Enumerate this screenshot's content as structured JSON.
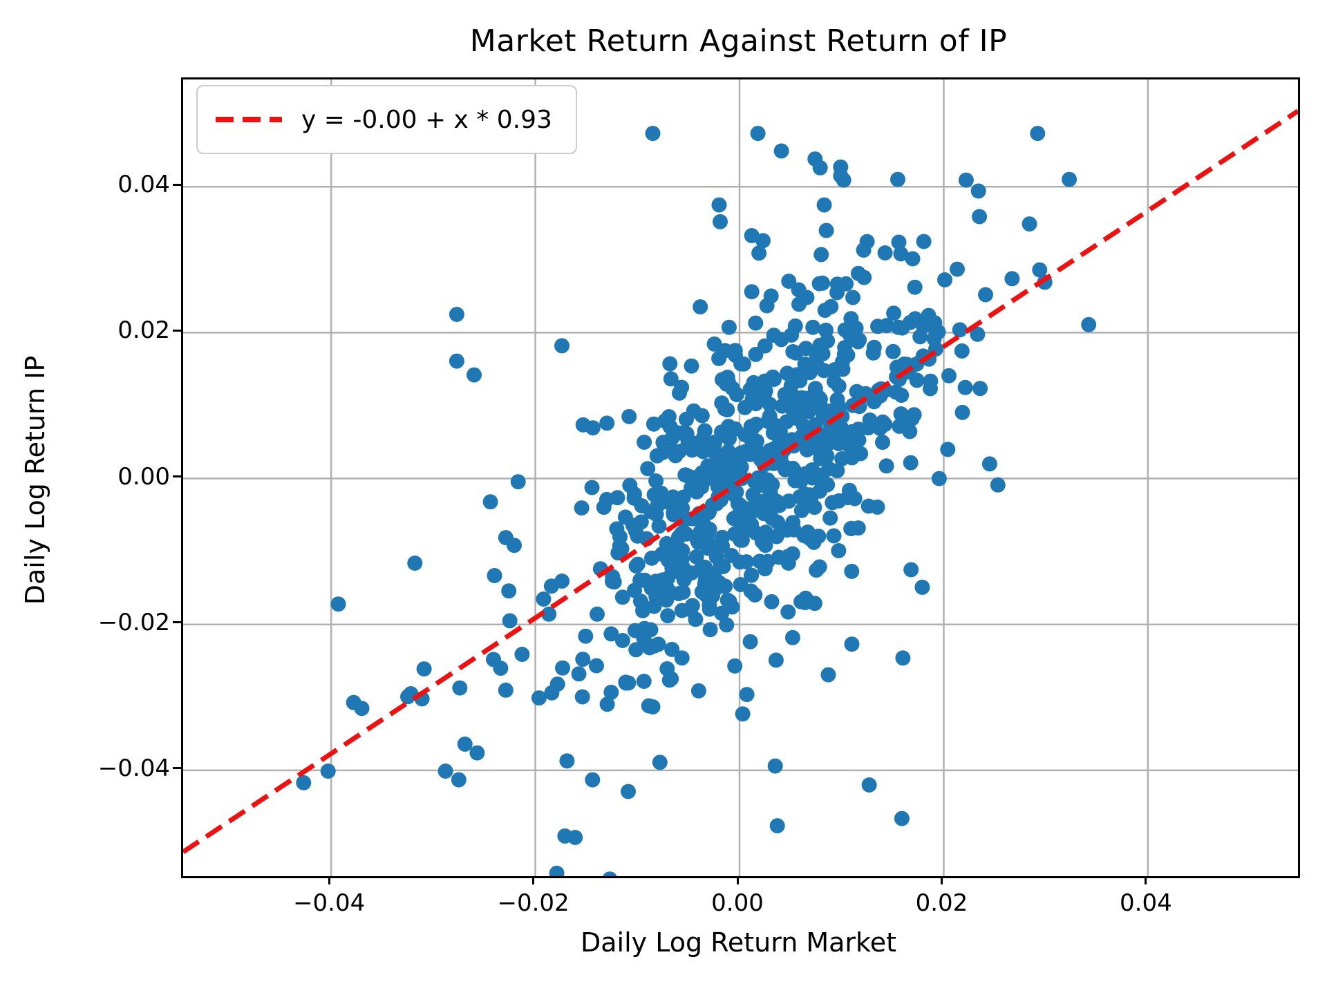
{
  "title": "Market Return Against Return of IP",
  "legend": {
    "label": "y = -0.00 + x * 0.93"
  },
  "axes": {
    "xlabel": "Daily Log Return Market",
    "ylabel": "Daily Log Return IP"
  },
  "colors": {
    "scatter": "#1f77b4",
    "regression_line": "#ec1212",
    "grid": "#b0b0b0",
    "spine": "#000000",
    "background": "#ffffff"
  },
  "chart_data": {
    "type": "scatter",
    "title": "Market Return Against Return of IP",
    "xlabel": "Daily Log Return Market",
    "ylabel": "Daily Log Return IP",
    "grid": true,
    "legend_position": "upper left",
    "legend_label": "y = -0.00 + x * 0.93",
    "xlim": [
      -0.0545,
      0.0547
    ],
    "ylim": [
      -0.0545,
      0.0547
    ],
    "x_ticks": [
      {
        "value": -0.04,
        "label": "−0.04"
      },
      {
        "value": -0.02,
        "label": "−0.02"
      },
      {
        "value": 0.0,
        "label": "0.00"
      },
      {
        "value": 0.02,
        "label": "0.02"
      },
      {
        "value": 0.04,
        "label": "0.04"
      }
    ],
    "y_ticks": [
      {
        "value": 0.04,
        "label": "0.04"
      },
      {
        "value": 0.02,
        "label": "0.02"
      },
      {
        "value": 0.0,
        "label": "0.00"
      },
      {
        "value": -0.02,
        "label": "−0.02"
      },
      {
        "value": -0.04,
        "label": "−0.04"
      }
    ],
    "regression": {
      "intercept": -0.0005,
      "slope": 0.93,
      "style": "dashed",
      "color": "red"
    },
    "marker_radius_px": 11,
    "points": [
      [
        -0.0085,
        0.0473
      ],
      [
        0.0018,
        0.0473
      ],
      [
        0.0292,
        0.0473
      ],
      [
        0.0041,
        0.0449
      ],
      [
        0.0074,
        0.0438
      ],
      [
        0.0079,
        0.0426
      ],
      [
        0.0099,
        0.0427
      ],
      [
        0.0099,
        0.0415
      ],
      [
        0.0102,
        0.0409
      ],
      [
        0.0155,
        0.041
      ],
      [
        0.0323,
        0.041
      ],
      [
        0.0222,
        0.0409
      ],
      [
        0.0234,
        0.0394
      ],
      [
        -0.002,
        0.0375
      ],
      [
        -0.0019,
        0.0352
      ],
      [
        0.0083,
        0.0375
      ],
      [
        0.0085,
        0.034
      ],
      [
        0.0012,
        0.0333
      ],
      [
        0.0023,
        0.0326
      ],
      [
        0.0019,
        0.0309
      ],
      [
        0.008,
        0.0307
      ],
      [
        0.0156,
        0.0324
      ],
      [
        0.0158,
        0.0308
      ],
      [
        0.0235,
        0.0359
      ],
      [
        0.0284,
        0.0349
      ],
      [
        0.0294,
        0.0286
      ],
      [
        0.0299,
        0.0269
      ],
      [
        0.0267,
        0.0274
      ],
      [
        0.0241,
        0.0252
      ],
      [
        0.0342,
        0.0211
      ],
      [
        0.0245,
        0.002
      ],
      [
        0.0168,
        -0.0125
      ],
      [
        0.0179,
        -0.0149
      ],
      [
        0.016,
        -0.0246
      ],
      [
        0.011,
        -0.0227
      ],
      [
        0.0087,
        -0.0269
      ],
      [
        -0.0277,
        0.0225
      ],
      [
        -0.0277,
        0.0161
      ],
      [
        -0.026,
        0.0142
      ],
      [
        -0.0174,
        0.0182
      ],
      [
        -0.0318,
        -0.0116
      ],
      [
        -0.0244,
        -0.0032
      ],
      [
        -0.0229,
        -0.0081
      ],
      [
        -0.024,
        -0.0133
      ],
      [
        -0.0225,
        -0.0195
      ],
      [
        -0.0226,
        -0.0154
      ],
      [
        -0.0393,
        -0.0172
      ],
      [
        -0.0309,
        -0.0261
      ],
      [
        -0.0322,
        -0.0295
      ],
      [
        -0.0311,
        -0.0302
      ],
      [
        -0.037,
        -0.0315
      ],
      [
        -0.0274,
        -0.0287
      ],
      [
        -0.0229,
        -0.029
      ],
      [
        -0.0241,
        -0.0248
      ],
      [
        -0.0213,
        -0.0241
      ],
      [
        -0.0257,
        -0.0376
      ],
      [
        -0.0275,
        -0.0413
      ],
      [
        -0.0427,
        -0.0417
      ],
      [
        -0.0403,
        -0.0401
      ],
      [
        -0.0378,
        -0.0307
      ],
      [
        -0.0325,
        -0.0299
      ],
      [
        -0.0269,
        -0.0364
      ],
      [
        -0.0288,
        -0.0401
      ],
      [
        -0.0234,
        -0.026
      ],
      [
        -0.0085,
        -0.0313
      ],
      [
        -0.004,
        -0.0291
      ],
      [
        -0.0169,
        -0.0387
      ],
      [
        -0.0078,
        -0.0389
      ],
      [
        -0.0144,
        -0.0413
      ],
      [
        -0.0109,
        -0.0429
      ],
      [
        0.0035,
        -0.0394
      ],
      [
        0.0037,
        -0.0476
      ],
      [
        0.0127,
        -0.042
      ],
      [
        0.0159,
        -0.0466
      ],
      [
        -0.0171,
        -0.049
      ],
      [
        -0.0161,
        -0.0492
      ],
      [
        -0.0179,
        -0.0541
      ],
      [
        -0.0127,
        -0.0549
      ]
    ],
    "cloud": {
      "note": "dense central cluster of daily-return points, synthesized to match screenshot density",
      "n": 640,
      "seed": 42,
      "x_mean": 0.0012,
      "x_std": 0.0092,
      "slope": 0.93,
      "intercept": -0.0005,
      "resid_std": 0.0102,
      "x_accept": 0.0255,
      "y_accept_low": -0.033,
      "y_accept_high": 0.0335
    }
  }
}
